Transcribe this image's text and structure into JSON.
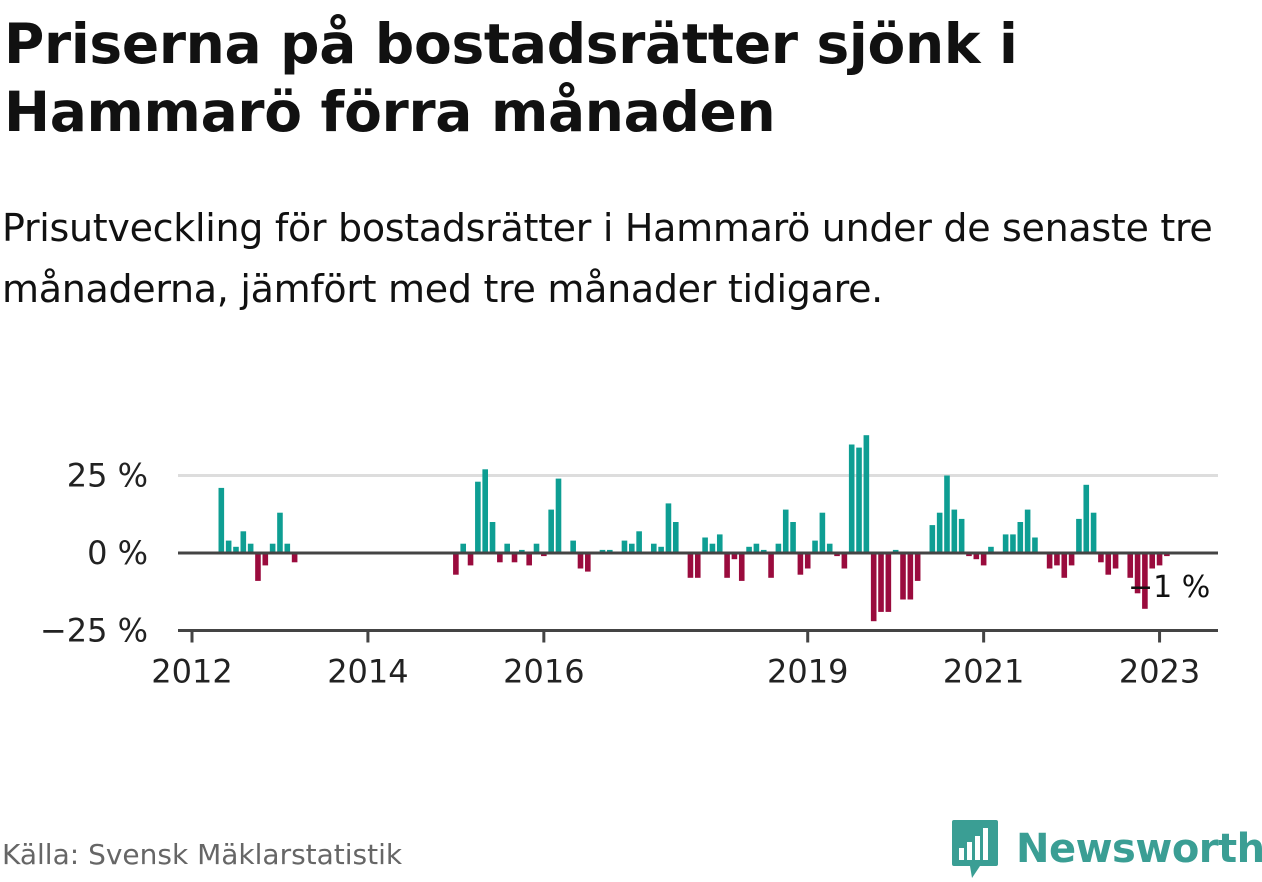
{
  "header": {
    "title": "Priserna på bostadsrätter sjönk i Hammarö förra månaden",
    "subtitle": "Prisutveckling för bostadsrätter i Hammarö under de senaste tre månaderna, jämfört med tre månader tidigare."
  },
  "footer": {
    "source": "Källa: Svensk Mäklarstatistik",
    "brand": "Newsworthy"
  },
  "colors": {
    "positive": "#0e9e93",
    "negative": "#9a0b3d",
    "gridline": "#dddddd",
    "zero_line": "#444444",
    "brand": "#3a9e94"
  },
  "chart_data": {
    "type": "bar",
    "title": "Priserna på bostadsrätter sjönk i Hammarö förra månaden",
    "subtitle": "Prisutveckling för bostadsrätter i Hammarö under de senaste tre månaderna, jämfört med tre månader tidigare.",
    "xlabel": "",
    "ylabel": "",
    "unit": "%",
    "ylim": [
      -27,
      40
    ],
    "xlim": [
      "2012-01",
      "2023-12"
    ],
    "y_ticks": [
      {
        "value": 25,
        "label": "25 %"
      },
      {
        "value": 0,
        "label": "0 %"
      },
      {
        "value": -25,
        "label": "−25 %"
      }
    ],
    "x_ticks": [
      {
        "date": "2012-01",
        "label": "2012"
      },
      {
        "date": "2014-01",
        "label": "2014"
      },
      {
        "date": "2016-01",
        "label": "2016"
      },
      {
        "date": "2019-01",
        "label": "2019"
      },
      {
        "date": "2021-01",
        "label": "2021"
      },
      {
        "date": "2023-01",
        "label": "2023"
      }
    ],
    "grid": true,
    "last_value_label": "−1 %",
    "series": [
      {
        "values": [
          {
            "date": "2012-05",
            "value": 21
          },
          {
            "date": "2012-06",
            "value": 4
          },
          {
            "date": "2012-07",
            "value": 2
          },
          {
            "date": "2012-08",
            "value": 7
          },
          {
            "date": "2012-09",
            "value": 3
          },
          {
            "date": "2012-10",
            "value": -9
          },
          {
            "date": "2012-11",
            "value": -4
          },
          {
            "date": "2012-12",
            "value": 3
          },
          {
            "date": "2013-01",
            "value": 13
          },
          {
            "date": "2013-02",
            "value": 3
          },
          {
            "date": "2013-03",
            "value": -3
          },
          {
            "date": "2015-01",
            "value": -7
          },
          {
            "date": "2015-02",
            "value": 3
          },
          {
            "date": "2015-03",
            "value": -4
          },
          {
            "date": "2015-04",
            "value": 23
          },
          {
            "date": "2015-05",
            "value": 27
          },
          {
            "date": "2015-06",
            "value": 10
          },
          {
            "date": "2015-07",
            "value": -3
          },
          {
            "date": "2015-08",
            "value": 3
          },
          {
            "date": "2015-09",
            "value": -3
          },
          {
            "date": "2015-10",
            "value": 1
          },
          {
            "date": "2015-11",
            "value": -4
          },
          {
            "date": "2015-12",
            "value": 3
          },
          {
            "date": "2016-01",
            "value": -1
          },
          {
            "date": "2016-02",
            "value": 14
          },
          {
            "date": "2016-03",
            "value": 24
          },
          {
            "date": "2016-05",
            "value": 4
          },
          {
            "date": "2016-06",
            "value": -5
          },
          {
            "date": "2016-07",
            "value": -6
          },
          {
            "date": "2016-09",
            "value": 1
          },
          {
            "date": "2016-10",
            "value": 1
          },
          {
            "date": "2016-12",
            "value": 4
          },
          {
            "date": "2017-01",
            "value": 3
          },
          {
            "date": "2017-02",
            "value": 7
          },
          {
            "date": "2017-04",
            "value": 3
          },
          {
            "date": "2017-05",
            "value": 2
          },
          {
            "date": "2017-06",
            "value": 16
          },
          {
            "date": "2017-07",
            "value": 10
          },
          {
            "date": "2017-09",
            "value": -8
          },
          {
            "date": "2017-10",
            "value": -8
          },
          {
            "date": "2017-11",
            "value": 5
          },
          {
            "date": "2017-12",
            "value": 3
          },
          {
            "date": "2018-01",
            "value": 6
          },
          {
            "date": "2018-02",
            "value": -8
          },
          {
            "date": "2018-03",
            "value": -2
          },
          {
            "date": "2018-04",
            "value": -9
          },
          {
            "date": "2018-05",
            "value": 2
          },
          {
            "date": "2018-06",
            "value": 3
          },
          {
            "date": "2018-07",
            "value": 1
          },
          {
            "date": "2018-08",
            "value": -8
          },
          {
            "date": "2018-09",
            "value": 3
          },
          {
            "date": "2018-10",
            "value": 14
          },
          {
            "date": "2018-11",
            "value": 10
          },
          {
            "date": "2018-12",
            "value": -7
          },
          {
            "date": "2019-01",
            "value": -5
          },
          {
            "date": "2019-02",
            "value": 4
          },
          {
            "date": "2019-03",
            "value": 13
          },
          {
            "date": "2019-04",
            "value": 3
          },
          {
            "date": "2019-05",
            "value": -1
          },
          {
            "date": "2019-06",
            "value": -5
          },
          {
            "date": "2019-07",
            "value": 35
          },
          {
            "date": "2019-08",
            "value": 34
          },
          {
            "date": "2019-09",
            "value": 38
          },
          {
            "date": "2019-10",
            "value": -22
          },
          {
            "date": "2019-11",
            "value": -19
          },
          {
            "date": "2019-12",
            "value": -19
          },
          {
            "date": "2020-01",
            "value": 1
          },
          {
            "date": "2020-02",
            "value": -15
          },
          {
            "date": "2020-03",
            "value": -15
          },
          {
            "date": "2020-04",
            "value": -9
          },
          {
            "date": "2020-06",
            "value": 9
          },
          {
            "date": "2020-07",
            "value": 13
          },
          {
            "date": "2020-08",
            "value": 25
          },
          {
            "date": "2020-09",
            "value": 14
          },
          {
            "date": "2020-10",
            "value": 11
          },
          {
            "date": "2020-11",
            "value": -1
          },
          {
            "date": "2020-12",
            "value": -2
          },
          {
            "date": "2021-01",
            "value": -4
          },
          {
            "date": "2021-02",
            "value": 2
          },
          {
            "date": "2021-04",
            "value": 6
          },
          {
            "date": "2021-05",
            "value": 6
          },
          {
            "date": "2021-06",
            "value": 10
          },
          {
            "date": "2021-07",
            "value": 14
          },
          {
            "date": "2021-08",
            "value": 5
          },
          {
            "date": "2021-10",
            "value": -5
          },
          {
            "date": "2021-11",
            "value": -4
          },
          {
            "date": "2021-12",
            "value": -8
          },
          {
            "date": "2022-01",
            "value": -4
          },
          {
            "date": "2022-02",
            "value": 11
          },
          {
            "date": "2022-03",
            "value": 22
          },
          {
            "date": "2022-04",
            "value": 13
          },
          {
            "date": "2022-05",
            "value": -3
          },
          {
            "date": "2022-06",
            "value": -7
          },
          {
            "date": "2022-07",
            "value": -5
          },
          {
            "date": "2022-09",
            "value": -8
          },
          {
            "date": "2022-10",
            "value": -13
          },
          {
            "date": "2022-11",
            "value": -18
          },
          {
            "date": "2022-12",
            "value": -5
          },
          {
            "date": "2023-01",
            "value": -4
          },
          {
            "date": "2023-02",
            "value": -1
          }
        ]
      }
    ]
  }
}
